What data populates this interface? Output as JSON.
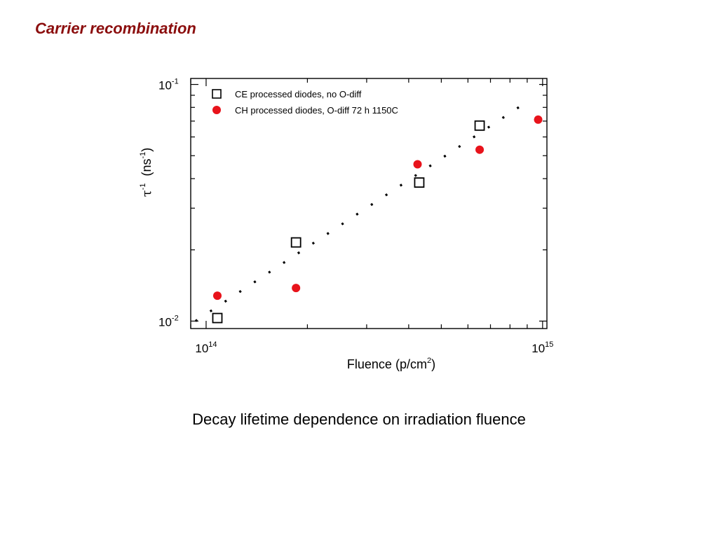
{
  "slide": {
    "title": "Carrier recombination",
    "caption": "Decay lifetime dependence on irradiation fluence"
  },
  "chart_data": {
    "type": "scatter",
    "xscale": "log",
    "yscale": "log",
    "xlim": [
      90000000000000.0,
      1030000000000000.0
    ],
    "ylim": [
      0.0093,
      0.106
    ],
    "xlabel": {
      "base": "Fluence (p/cm",
      "sup": "2",
      "tail": ")"
    },
    "ylabel": {
      "tau": "τ",
      "tau_sup": "-1",
      "unit": "(ns",
      "unit_sup": "-1",
      "tail": ")"
    },
    "x_ticks": [
      {
        "value": 100000000000000.0,
        "base": "10",
        "exp": "14"
      },
      {
        "value": 1000000000000000.0,
        "base": "10",
        "exp": "15"
      }
    ],
    "y_ticks": [
      {
        "value": 0.01,
        "base": "10",
        "exp": "-2"
      },
      {
        "value": 0.1,
        "base": "10",
        "exp": "-1"
      }
    ],
    "legend_position": "top-left",
    "series": [
      {
        "name": "CE processed diodes, no O-diff",
        "marker": "open-square",
        "color": "#000000",
        "x": [
          108000000000000.0,
          185000000000000.0,
          430000000000000.0,
          650000000000000.0
        ],
        "y": [
          0.0103,
          0.0215,
          0.0385,
          0.067
        ]
      },
      {
        "name": "CH processed diodes, O-diff 72 h 1150C",
        "marker": "filled-circle",
        "color": "#e8131b",
        "x": [
          108000000000000.0,
          185000000000000.0,
          425000000000000.0,
          650000000000000.0,
          970000000000000.0
        ],
        "y": [
          0.0128,
          0.0138,
          0.046,
          0.053,
          0.071
        ]
      }
    ],
    "fit_line": {
      "style": "dotted",
      "color": "#000000",
      "x": [
        93000000000000.0,
        860000000000000.0
      ],
      "y": [
        0.01,
        0.081
      ]
    },
    "grid": false
  }
}
